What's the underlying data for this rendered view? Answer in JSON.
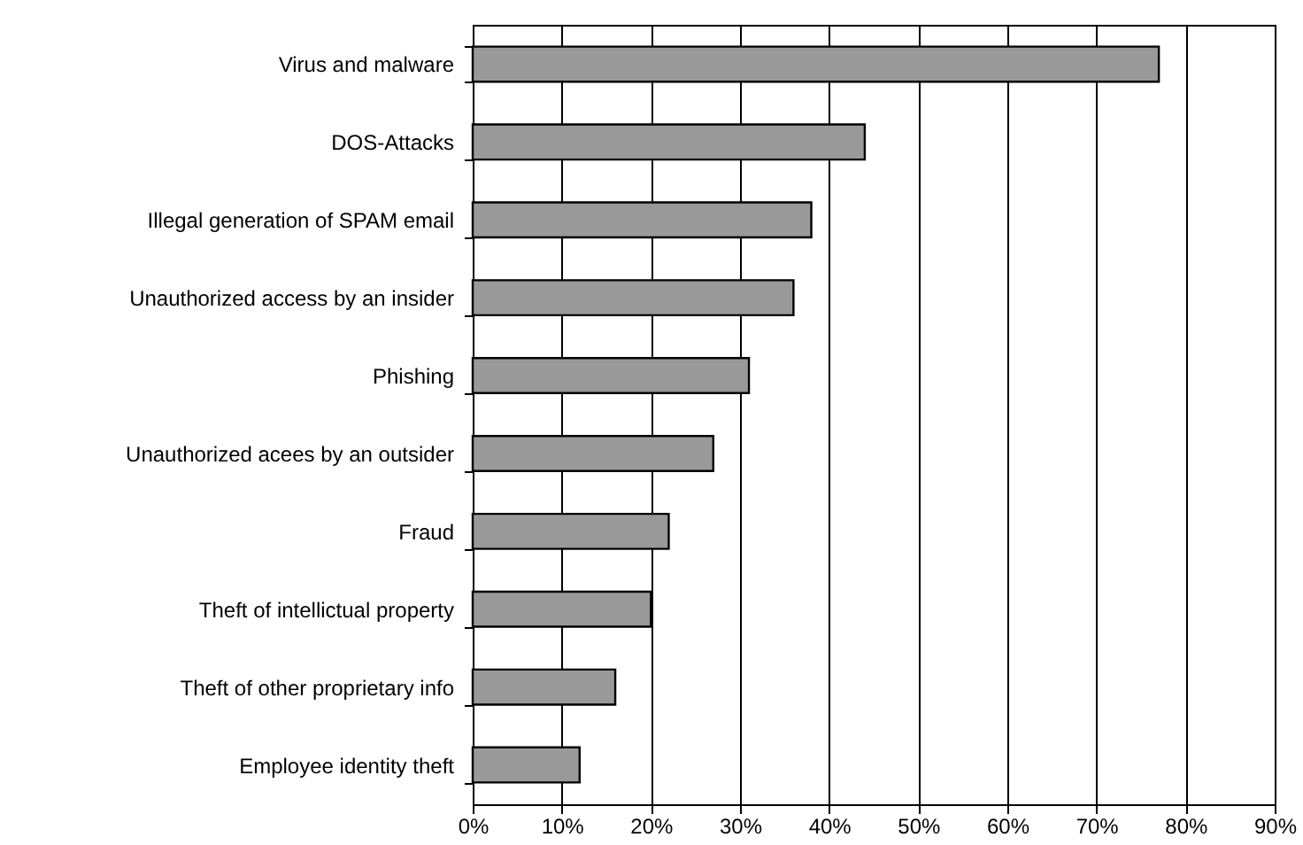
{
  "chart_data": {
    "type": "bar",
    "orientation": "horizontal",
    "categories": [
      "Virus and malware",
      "DOS-Attacks",
      "Illegal generation of SPAM email",
      "Unauthorized access by an insider",
      "Phishing",
      "Unauthorized acees by an outsider",
      "Fraud",
      "Theft of intellictual property",
      "Theft of other proprietary info",
      "Employee identity theft"
    ],
    "values": [
      77,
      44,
      38,
      36,
      31,
      27,
      22,
      20,
      16,
      12
    ],
    "color": "#999999",
    "xlim": [
      0,
      90
    ],
    "xticks": [
      {
        "value": 0,
        "label": "0%"
      },
      {
        "value": 10,
        "label": "10%"
      },
      {
        "value": 20,
        "label": "20%"
      },
      {
        "value": 30,
        "label": "30%"
      },
      {
        "value": 40,
        "label": "40%"
      },
      {
        "value": 50,
        "label": "50%"
      },
      {
        "value": 60,
        "label": "60%"
      },
      {
        "value": 70,
        "label": "70%"
      },
      {
        "value": 80,
        "label": "80%"
      },
      {
        "value": 90,
        "label": "90%"
      }
    ],
    "grid": "x"
  }
}
